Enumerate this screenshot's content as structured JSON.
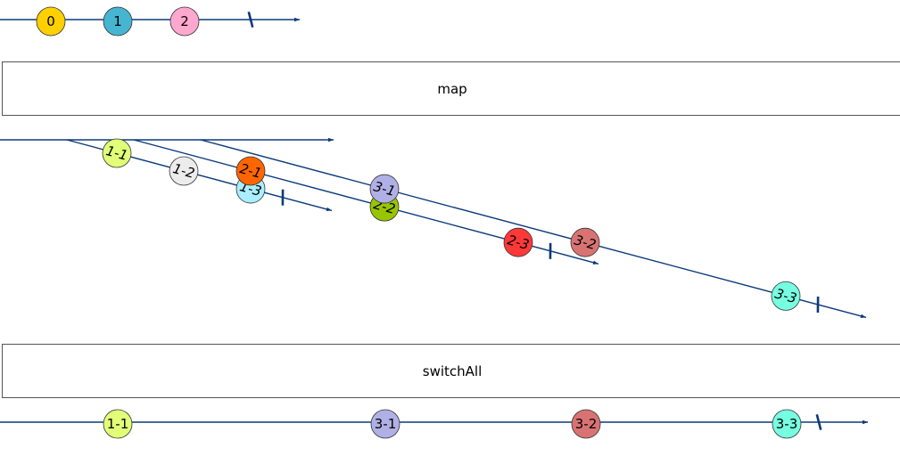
{
  "line_color": "#0b3a7a",
  "operators": {
    "map": "map",
    "switchAll": "switchAll"
  },
  "source": {
    "marbles": [
      {
        "label": "0",
        "color": "#ffd000"
      },
      {
        "label": "1",
        "color": "#46b5d1"
      },
      {
        "label": "2",
        "color": "#ffa8cf"
      }
    ]
  },
  "inner": [
    {
      "marbles": [
        {
          "label": "1-1",
          "color": "#e1ff77"
        },
        {
          "label": "1-2",
          "color": "#ececec"
        },
        {
          "label": "1-3",
          "color": "#aaeeff"
        }
      ]
    },
    {
      "marbles": [
        {
          "label": "2-1",
          "color": "#ff6600"
        },
        {
          "label": "2-2",
          "color": "#99c400"
        },
        {
          "label": "2-3",
          "color": "#ff3838"
        }
      ]
    },
    {
      "marbles": [
        {
          "label": "3-1",
          "color": "#b0b0e6"
        },
        {
          "label": "3-2",
          "color": "#d97373"
        },
        {
          "label": "3-3",
          "color": "#77ffe1"
        }
      ]
    }
  ],
  "output": {
    "marbles": [
      {
        "label": "1-1",
        "color": "#e1ff77"
      },
      {
        "label": "3-1",
        "color": "#b0b0e6"
      },
      {
        "label": "3-2",
        "color": "#d97373"
      },
      {
        "label": "3-3",
        "color": "#77ffe1"
      }
    ]
  }
}
